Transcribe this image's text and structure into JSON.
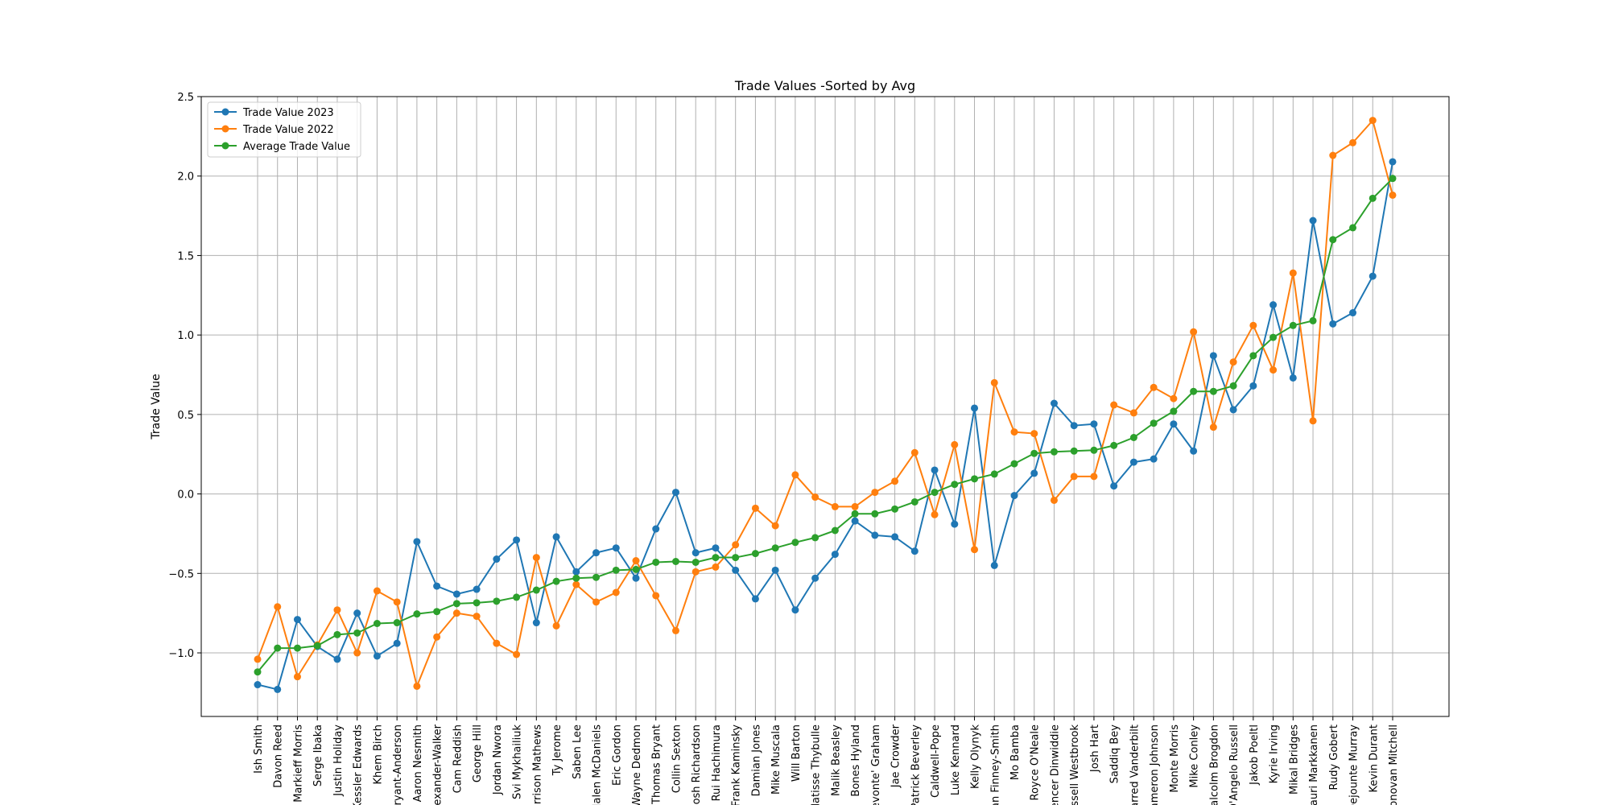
{
  "chart_data": {
    "type": "line",
    "title": "Trade Values -Sorted by Avg",
    "xlabel": "",
    "ylabel": "Trade Value",
    "ylim": [
      -1.4,
      2.5
    ],
    "yticks": [
      -1.0,
      -0.5,
      0.0,
      0.5,
      1.0,
      1.5,
      2.0,
      2.5
    ],
    "ytick_labels": [
      "−1.0",
      "−0.5",
      "0.0",
      "0.5",
      "1.0",
      "1.5",
      "2.0",
      "2.5"
    ],
    "grid": true,
    "legend_position": "top-left",
    "categories": [
      "Ish Smith",
      "Davon Reed",
      "Markieff Morris",
      "Serge Ibaka",
      "Justin Holiday",
      "Kessler Edwards",
      "Khem Birch",
      "Thomas Bryant-Anderson",
      "Aaron Nesmith",
      "Nickeil Alexander-Walker",
      "Cam Reddish",
      "George Hill",
      "Jordan Nwora",
      "Svi Mykhailiuk",
      "Garrison Mathews",
      "Ty Jerome",
      "Saben Lee",
      "Jalen McDaniels",
      "Eric Gordon",
      "Wayne Dedmon",
      "Thomas Bryant",
      "Collin Sexton",
      "Josh Richardson",
      "Rui Hachimura",
      "Frank Kaminsky",
      "Damian Jones",
      "Mike Muscala",
      "Will Barton",
      "Matisse Thybulle",
      "Malik Beasley",
      "Bones Hyland",
      "Devonte' Graham",
      "Jae Crowder",
      "Patrick Beverley",
      "Kentavious Caldwell-Pope",
      "Luke Kennard",
      "Kelly Olynyk",
      "Dorian Finney-Smith",
      "Mo Bamba",
      "Royce O'Neale",
      "Spencer Dinwiddie",
      "Russell Westbrook",
      "Josh Hart",
      "Saddiq Bey",
      "Jarred Vanderbilt",
      "Cameron Johnson",
      "Monte Morris",
      "Mike Conley",
      "Malcolm Brogdon",
      "D'Angelo Russell",
      "Jakob Poeltl",
      "Kyrie Irving",
      "Mikal Bridges",
      "Lauri Markkanen",
      "Rudy Gobert",
      "Dejounte Murray",
      "Kevin Durant",
      "Donovan Mitchell"
    ],
    "tick_labels": [
      "Ish Smith",
      "Davon Reed",
      "Markieff Morris",
      "Serge Ibaka",
      "Justin Holiday",
      "Kessler Edwards",
      "Khem Birch",
      "Bryant-Anderson",
      "Aaron Nesmith",
      "Alexander-Walker",
      "Cam Reddish",
      "George Hill",
      "Jordan Nwora",
      "Svi Mykhailiuk",
      "Garrison Mathews",
      "Ty Jerome",
      "Saben Lee",
      "Jalen McDaniels",
      "Eric Gordon",
      "Wayne Dedmon",
      "Thomas Bryant",
      "Collin Sexton",
      "Josh Richardson",
      "Rui Hachimura",
      "Frank Kaminsky",
      "Damian Jones",
      "Mike Muscala",
      "Will Barton",
      "Matisse Thybulle",
      "Malik Beasley",
      "Bones Hyland",
      "Devonte' Graham",
      "Jae Crowder",
      "Patrick Beverley",
      "Caldwell-Pope",
      "Luke Kennard",
      "Kelly Olynyk",
      "Dorian Finney-Smith",
      "Mo Bamba",
      "Royce O'Neale",
      "Spencer Dinwiddie",
      "Russell Westbrook",
      "Josh Hart",
      "Saddiq Bey",
      "Jarred Vanderbilt",
      "Cameron Johnson",
      "Monte Morris",
      "Mike Conley",
      "Malcolm Brogdon",
      "D'Angelo Russell",
      "Jakob Poeltl",
      "Kyrie Irving",
      "Mikal Bridges",
      "Lauri Markkanen",
      "Rudy Gobert",
      "Dejounte Murray",
      "Kevin Durant",
      "Donovan Mitchell"
    ],
    "series": [
      {
        "name": "Trade Value 2023",
        "color": "#1f77b4",
        "values": [
          -1.2,
          -1.23,
          -0.79,
          -0.96,
          -1.04,
          -0.75,
          -1.02,
          -0.94,
          -0.3,
          -0.58,
          -0.63,
          -0.6,
          -0.41,
          -0.29,
          -0.81,
          -0.27,
          -0.49,
          -0.37,
          -0.34,
          -0.53,
          -0.22,
          0.01,
          -0.37,
          -0.34,
          -0.48,
          -0.66,
          -0.48,
          -0.73,
          -0.53,
          -0.38,
          -0.17,
          -0.26,
          -0.27,
          -0.36,
          0.15,
          -0.19,
          0.54,
          -0.45,
          -0.01,
          0.13,
          0.57,
          0.43,
          0.44,
          0.05,
          0.2,
          0.22,
          0.44,
          0.27,
          0.87,
          0.53,
          0.68,
          1.19,
          0.73,
          1.72,
          1.07,
          1.14,
          1.37,
          2.09
        ]
      },
      {
        "name": "Trade Value 2022",
        "color": "#ff7f0e",
        "values": [
          -1.04,
          -0.71,
          -1.15,
          -0.95,
          -0.73,
          -1.0,
          -0.61,
          -0.68,
          -1.21,
          -0.9,
          -0.75,
          -0.77,
          -0.94,
          -1.01,
          -0.4,
          -0.83,
          -0.57,
          -0.68,
          -0.62,
          -0.42,
          -0.64,
          -0.86,
          -0.49,
          -0.46,
          -0.32,
          -0.09,
          -0.2,
          0.12,
          -0.02,
          -0.08,
          -0.08,
          0.01,
          0.08,
          0.26,
          -0.13,
          0.31,
          -0.35,
          0.7,
          0.39,
          0.38,
          -0.04,
          0.11,
          0.11,
          0.56,
          0.51,
          0.67,
          0.6,
          1.02,
          0.42,
          0.83,
          1.06,
          0.78,
          1.39,
          0.46,
          2.13,
          2.21,
          2.35,
          1.88
        ]
      },
      {
        "name": "Average Trade Value",
        "color": "#2ca02c",
        "values": [
          -1.12,
          -0.97,
          -0.97,
          -0.955,
          -0.885,
          -0.875,
          -0.815,
          -0.81,
          -0.755,
          -0.74,
          -0.69,
          -0.685,
          -0.675,
          -0.65,
          -0.605,
          -0.55,
          -0.53,
          -0.525,
          -0.48,
          -0.475,
          -0.43,
          -0.425,
          -0.43,
          -0.4,
          -0.4,
          -0.375,
          -0.34,
          -0.305,
          -0.275,
          -0.23,
          -0.125,
          -0.125,
          -0.095,
          -0.05,
          0.01,
          0.06,
          0.095,
          0.125,
          0.19,
          0.255,
          0.265,
          0.27,
          0.275,
          0.305,
          0.355,
          0.445,
          0.52,
          0.645,
          0.645,
          0.68,
          0.87,
          0.985,
          1.06,
          1.09,
          1.6,
          1.675,
          1.86,
          1.985
        ]
      }
    ]
  }
}
